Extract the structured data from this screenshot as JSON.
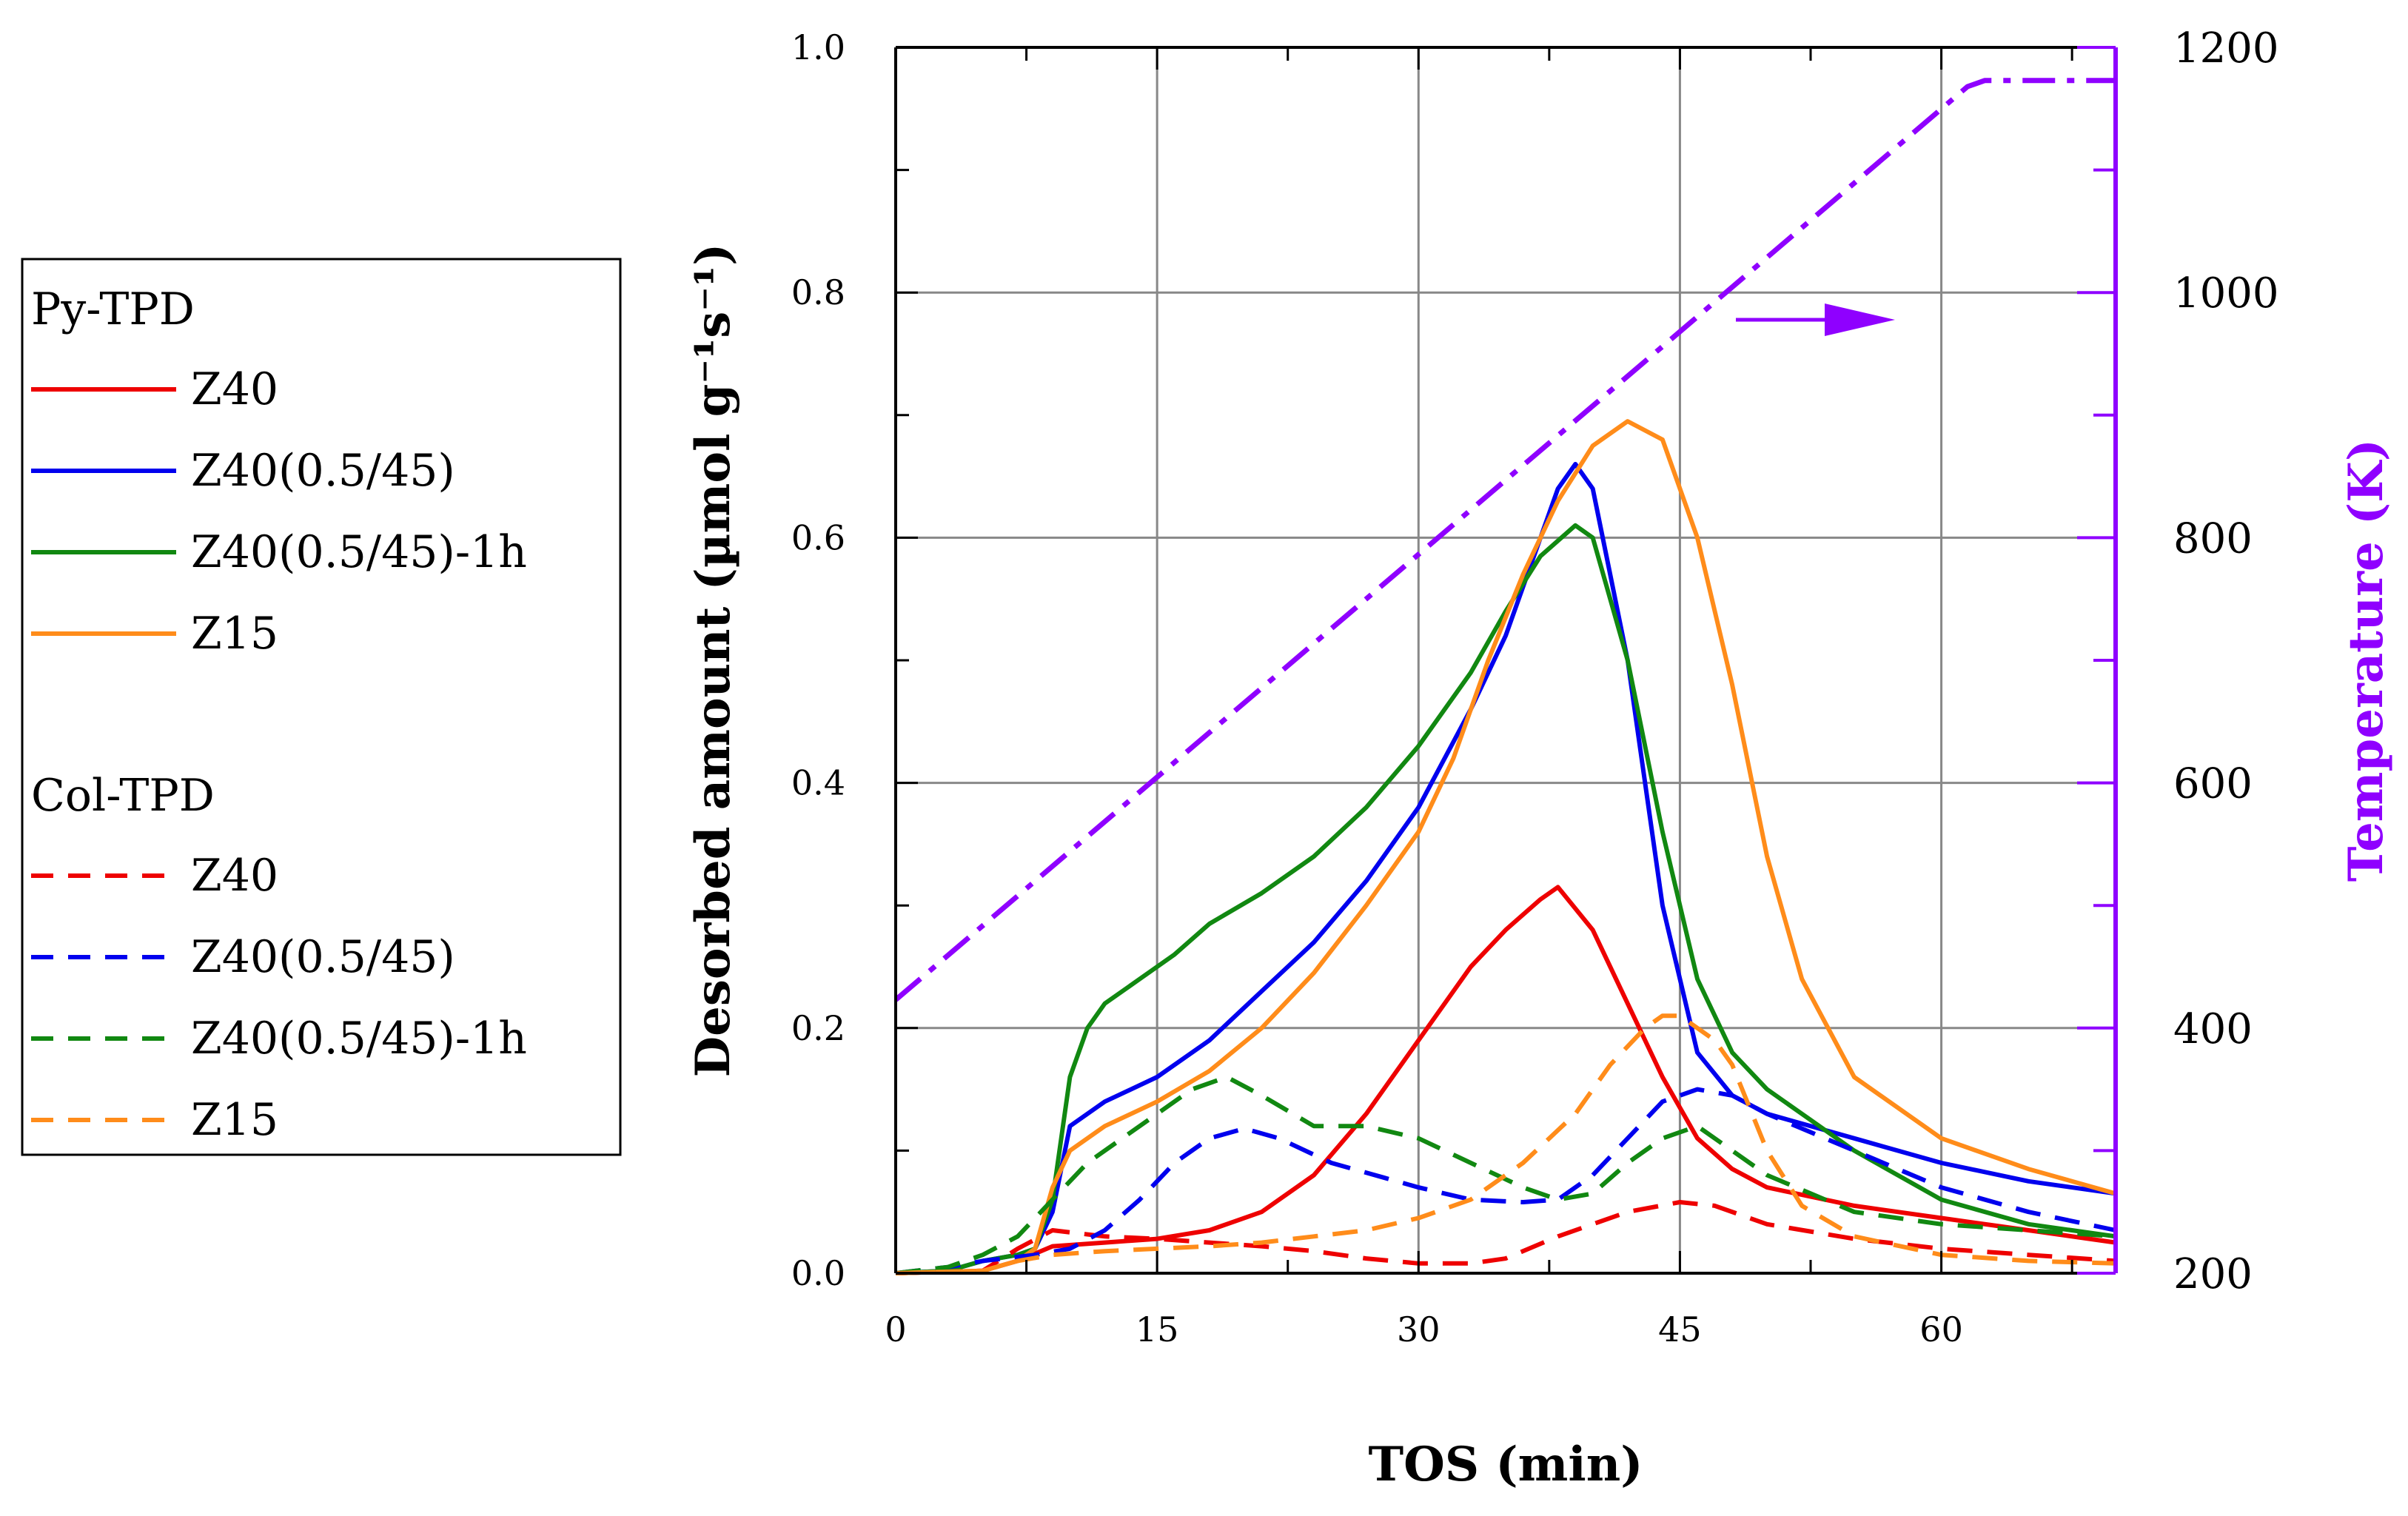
{
  "chart_data": {
    "type": "line",
    "xlabel": "TOS (min)",
    "ylabel": "Desorbed amount (µmol g⁻¹s⁻¹)",
    "y2label": "Temperature (K)",
    "xlim": [
      0,
      70
    ],
    "ylim": [
      0,
      1.0
    ],
    "y2lim": [
      200,
      1200
    ],
    "xticks": [
      "0",
      "15",
      "30",
      "45",
      "60"
    ],
    "yticks": [
      "0.0",
      "0.2",
      "0.4",
      "0.6",
      "0.8",
      "1.0"
    ],
    "y2ticks": [
      "200",
      "400",
      "600",
      "800",
      "1000",
      "1200"
    ],
    "grid": true,
    "legend": {
      "placement": "left",
      "group1": "Py-TPD",
      "group2": "Col-TPD",
      "labels": [
        "Z40",
        "Z40(0.5/45)",
        "Z40(0.5/45)-1h",
        "Z15"
      ]
    },
    "colors": {
      "Z40": "#ee0000",
      "Z40(0.5/45)": "#0000ee",
      "Z40(0.5/45)-1h": "#118811",
      "Z15": "#ff8c1a",
      "temperature": "#8f00ff"
    },
    "series": [
      {
        "name": "Z40",
        "group": "Py-TPD",
        "style": "solid",
        "color": "#ee0000",
        "x": [
          0,
          5,
          7,
          9,
          12,
          15,
          18,
          21,
          24,
          27,
          30,
          33,
          35,
          37,
          38,
          40,
          42,
          44,
          46,
          48,
          50,
          55,
          60,
          65,
          70
        ],
        "y": [
          0,
          0.002,
          0.01,
          0.022,
          0.025,
          0.028,
          0.035,
          0.05,
          0.08,
          0.13,
          0.19,
          0.25,
          0.28,
          0.305,
          0.315,
          0.28,
          0.22,
          0.16,
          0.11,
          0.085,
          0.07,
          0.055,
          0.045,
          0.035,
          0.025
        ]
      },
      {
        "name": "Z40(0.5/45)",
        "group": "Py-TPD",
        "style": "solid",
        "color": "#0000ee",
        "x": [
          0,
          3,
          5,
          7,
          8,
          9,
          10,
          12,
          15,
          18,
          21,
          24,
          27,
          30,
          33,
          35,
          37,
          38,
          39,
          40,
          42,
          44,
          46,
          48,
          50,
          55,
          60,
          65,
          70
        ],
        "y": [
          0,
          0.002,
          0.01,
          0.015,
          0.02,
          0.05,
          0.12,
          0.14,
          0.16,
          0.19,
          0.23,
          0.27,
          0.32,
          0.38,
          0.46,
          0.52,
          0.6,
          0.64,
          0.66,
          0.64,
          0.5,
          0.3,
          0.18,
          0.145,
          0.13,
          0.11,
          0.09,
          0.075,
          0.065
        ]
      },
      {
        "name": "Z40(0.5/45)-1h",
        "group": "Py-TPD",
        "style": "solid",
        "color": "#118811",
        "x": [
          0,
          3,
          5,
          7,
          8,
          9,
          10,
          11,
          12,
          14,
          16,
          18,
          21,
          24,
          27,
          30,
          33,
          35,
          37,
          39,
          40,
          42,
          44,
          46,
          48,
          50,
          55,
          60,
          65,
          70
        ],
        "y": [
          0,
          0.002,
          0.01,
          0.015,
          0.02,
          0.06,
          0.16,
          0.2,
          0.22,
          0.24,
          0.26,
          0.285,
          0.31,
          0.34,
          0.38,
          0.43,
          0.49,
          0.54,
          0.585,
          0.61,
          0.6,
          0.5,
          0.36,
          0.24,
          0.18,
          0.15,
          0.1,
          0.06,
          0.04,
          0.03
        ]
      },
      {
        "name": "Z15",
        "group": "Py-TPD",
        "style": "solid",
        "color": "#ff8c1a",
        "x": [
          0,
          5,
          7,
          8,
          9,
          10,
          12,
          15,
          18,
          21,
          24,
          27,
          30,
          32,
          34,
          36,
          38,
          40,
          42,
          44,
          46,
          48,
          50,
          52,
          55,
          60,
          65,
          70
        ],
        "y": [
          0,
          0.002,
          0.01,
          0.02,
          0.07,
          0.1,
          0.12,
          0.14,
          0.165,
          0.2,
          0.245,
          0.3,
          0.36,
          0.42,
          0.5,
          0.57,
          0.63,
          0.675,
          0.695,
          0.68,
          0.6,
          0.48,
          0.34,
          0.24,
          0.16,
          0.11,
          0.085,
          0.065
        ]
      },
      {
        "name": "Z40",
        "group": "Col-TPD",
        "style": "dashed",
        "color": "#ee0000",
        "x": [
          0,
          5,
          7,
          9,
          12,
          15,
          18,
          21,
          24,
          27,
          30,
          33,
          35,
          38,
          42,
          45,
          47,
          50,
          55,
          60,
          65,
          70
        ],
        "y": [
          0,
          0.002,
          0.02,
          0.035,
          0.03,
          0.028,
          0.025,
          0.022,
          0.018,
          0.012,
          0.008,
          0.008,
          0.012,
          0.03,
          0.05,
          0.058,
          0.055,
          0.04,
          0.028,
          0.02,
          0.015,
          0.01
        ]
      },
      {
        "name": "Z40(0.5/45)",
        "group": "Col-TPD",
        "style": "dashed",
        "color": "#0000ee",
        "x": [
          0,
          3,
          5,
          8,
          10,
          12,
          14,
          16,
          18,
          20,
          22,
          25,
          28,
          30,
          33,
          36,
          38,
          40,
          42,
          44,
          46,
          48,
          50,
          55,
          60,
          65,
          70
        ],
        "y": [
          0,
          0.005,
          0.01,
          0.015,
          0.02,
          0.035,
          0.06,
          0.09,
          0.11,
          0.118,
          0.11,
          0.09,
          0.078,
          0.07,
          0.06,
          0.058,
          0.06,
          0.08,
          0.11,
          0.14,
          0.15,
          0.145,
          0.13,
          0.1,
          0.07,
          0.05,
          0.035
        ]
      },
      {
        "name": "Z40(0.5/45)-1h",
        "group": "Col-TPD",
        "style": "dashed",
        "color": "#118811",
        "x": [
          0,
          3,
          5,
          7,
          9,
          11,
          13,
          15,
          17,
          19,
          21,
          24,
          27,
          30,
          33,
          36,
          38,
          40,
          42,
          44,
          46,
          48,
          50,
          55,
          60,
          65,
          70
        ],
        "y": [
          0,
          0.005,
          0.015,
          0.03,
          0.06,
          0.09,
          0.11,
          0.13,
          0.15,
          0.16,
          0.145,
          0.12,
          0.12,
          0.11,
          0.09,
          0.07,
          0.06,
          0.065,
          0.09,
          0.11,
          0.12,
          0.1,
          0.08,
          0.05,
          0.04,
          0.035,
          0.03
        ]
      },
      {
        "name": "Z15",
        "group": "Col-TPD",
        "style": "dashed",
        "color": "#ff8c1a",
        "x": [
          0,
          5,
          7,
          9,
          12,
          15,
          18,
          21,
          24,
          27,
          30,
          33,
          36,
          39,
          41,
          43,
          44,
          45,
          46,
          47,
          48,
          50,
          52,
          55,
          60,
          65,
          70
        ],
        "y": [
          0,
          0.002,
          0.01,
          0.015,
          0.018,
          0.02,
          0.022,
          0.025,
          0.03,
          0.035,
          0.045,
          0.06,
          0.09,
          0.13,
          0.17,
          0.2,
          0.21,
          0.21,
          0.2,
          0.19,
          0.17,
          0.1,
          0.055,
          0.03,
          0.015,
          0.01,
          0.008
        ]
      },
      {
        "name": "Temperature",
        "axis": "right",
        "style": "dashdot",
        "color": "#8f00ff",
        "x": [
          0,
          61.5,
          62.5,
          70
        ],
        "y": [
          423,
          1168,
          1173,
          1173
        ]
      }
    ]
  }
}
